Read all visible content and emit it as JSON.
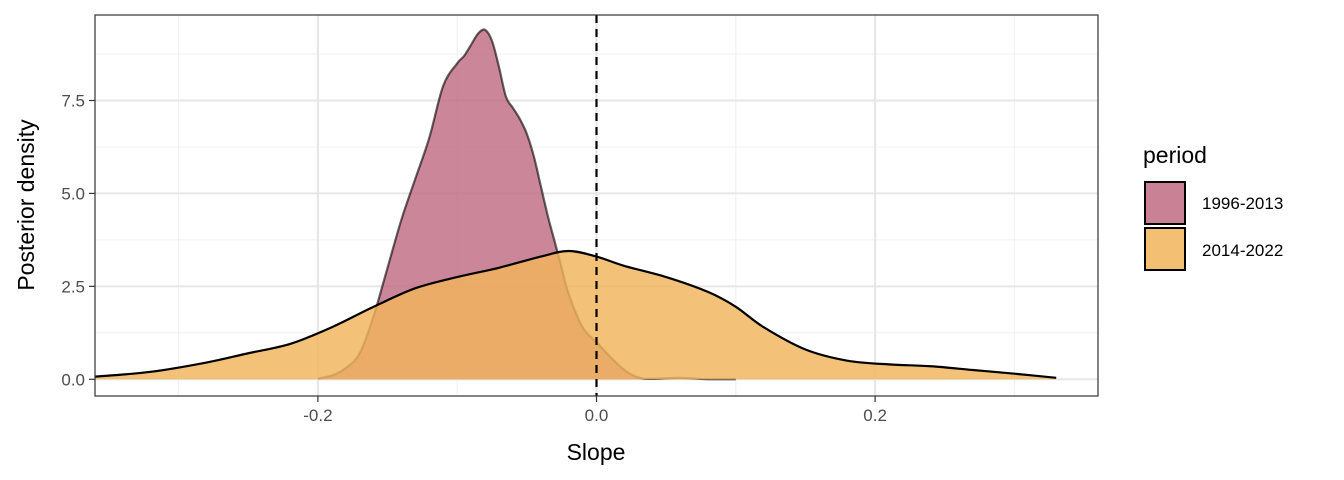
{
  "chart_data": {
    "type": "area",
    "xlabel": "Slope",
    "ylabel": "Posterior density",
    "xlim": [
      -0.36,
      0.36
    ],
    "ylim": [
      -0.45,
      9.8
    ],
    "x_ticks": [
      -0.2,
      0.0,
      0.2
    ],
    "x_tick_labels": [
      "-0.2",
      "0.0",
      "0.2"
    ],
    "y_ticks": [
      0,
      2.5,
      5,
      7.5
    ],
    "y_tick_labels": [
      "0.0",
      "2.5",
      "5.0",
      "7.5"
    ],
    "grid": true,
    "reference_line": {
      "x": 0.0,
      "style": "dashed"
    },
    "legend": {
      "title": "period",
      "placement": "right"
    },
    "series": [
      {
        "name": "1996-2013",
        "color": "#c06b82",
        "x": [
          -0.2,
          -0.19,
          -0.18,
          -0.17,
          -0.16,
          -0.15,
          -0.14,
          -0.13,
          -0.12,
          -0.11,
          -0.1,
          -0.095,
          -0.09,
          -0.085,
          -0.08,
          -0.075,
          -0.07,
          -0.065,
          -0.06,
          -0.055,
          -0.05,
          -0.045,
          -0.04,
          -0.035,
          -0.03,
          -0.025,
          -0.02,
          -0.01,
          0.0,
          0.01,
          0.02,
          0.03,
          0.04,
          0.06,
          0.08,
          0.1
        ],
        "y": [
          0.02,
          0.1,
          0.3,
          0.7,
          1.7,
          3.0,
          4.3,
          5.4,
          6.5,
          7.9,
          8.5,
          8.7,
          9.0,
          9.3,
          9.4,
          9.1,
          8.4,
          7.6,
          7.3,
          7.0,
          6.6,
          6.0,
          5.2,
          4.4,
          3.7,
          3.0,
          2.3,
          1.4,
          1.0,
          0.6,
          0.25,
          0.05,
          0.01,
          0.04,
          0.0,
          0.0
        ]
      },
      {
        "name": "2014-2022",
        "color": "#f0b45a",
        "x": [
          -0.36,
          -0.32,
          -0.28,
          -0.25,
          -0.22,
          -0.19,
          -0.16,
          -0.13,
          -0.1,
          -0.07,
          -0.04,
          -0.02,
          0.0,
          0.02,
          0.05,
          0.08,
          0.1,
          0.12,
          0.15,
          0.18,
          0.21,
          0.24,
          0.27,
          0.3,
          0.33
        ],
        "y": [
          0.07,
          0.2,
          0.45,
          0.7,
          0.95,
          1.4,
          1.95,
          2.45,
          2.75,
          3.0,
          3.3,
          3.45,
          3.3,
          3.05,
          2.75,
          2.35,
          1.95,
          1.4,
          0.8,
          0.5,
          0.4,
          0.35,
          0.25,
          0.15,
          0.04
        ]
      }
    ]
  }
}
